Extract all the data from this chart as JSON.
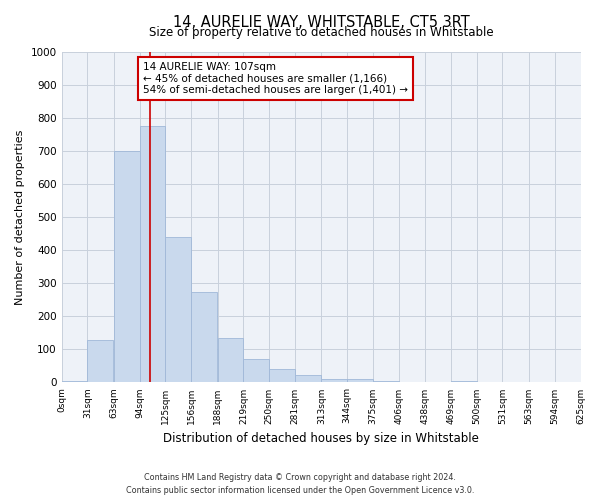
{
  "title": "14, AURELIE WAY, WHITSTABLE, CT5 3RT",
  "subtitle": "Size of property relative to detached houses in Whitstable",
  "xlabel": "Distribution of detached houses by size in Whitstable",
  "ylabel": "Number of detached properties",
  "bin_labels": [
    "0sqm",
    "31sqm",
    "63sqm",
    "94sqm",
    "125sqm",
    "156sqm",
    "188sqm",
    "219sqm",
    "250sqm",
    "281sqm",
    "313sqm",
    "344sqm",
    "375sqm",
    "406sqm",
    "438sqm",
    "469sqm",
    "500sqm",
    "531sqm",
    "563sqm",
    "594sqm",
    "625sqm"
  ],
  "bin_edges": [
    0,
    31,
    63,
    94,
    125,
    156,
    188,
    219,
    250,
    281,
    313,
    344,
    375,
    406,
    438,
    469,
    500,
    531,
    563,
    594,
    625
  ],
  "bar_heights": [
    5,
    128,
    700,
    775,
    440,
    275,
    133,
    70,
    40,
    22,
    11,
    11,
    5,
    0,
    0,
    5,
    0,
    0,
    0,
    0,
    0
  ],
  "bar_color": "#c9d9ed",
  "bar_edge_color": "#a0b8d8",
  "ylim": [
    0,
    1000
  ],
  "yticks": [
    0,
    100,
    200,
    300,
    400,
    500,
    600,
    700,
    800,
    900,
    1000
  ],
  "vline_x": 107,
  "vline_color": "#cc0000",
  "annotation_title": "14 AURELIE WAY: 107sqm",
  "annotation_line1": "← 45% of detached houses are smaller (1,166)",
  "annotation_line2": "54% of semi-detached houses are larger (1,401) →",
  "annotation_box_color": "#ffffff",
  "annotation_box_edge": "#cc0000",
  "grid_color": "#c8d0dc",
  "background_color": "#eef2f8",
  "footer_line1": "Contains HM Land Registry data © Crown copyright and database right 2024.",
  "footer_line2": "Contains public sector information licensed under the Open Government Licence v3.0."
}
